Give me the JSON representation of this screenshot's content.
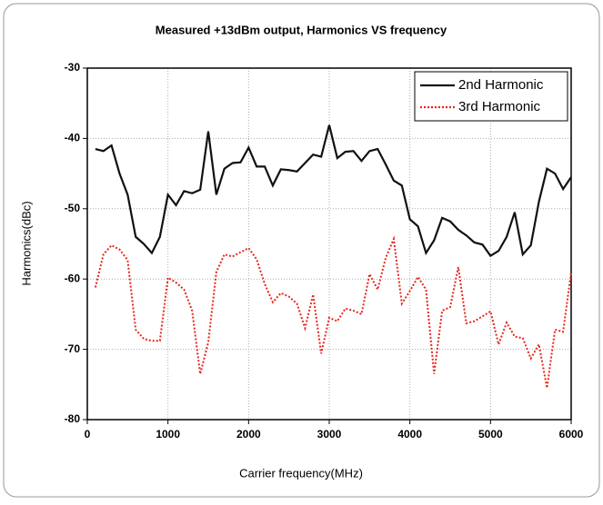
{
  "chart_data": {
    "type": "line",
    "title": "Measured +13dBm output, Harmonics VS frequency",
    "x_label": "Carrier frequency(MHz)",
    "y_label": "Harmonics(dBc)",
    "x": [
      100,
      200,
      300,
      400,
      500,
      600,
      700,
      800,
      900,
      1000,
      1100,
      1200,
      1300,
      1400,
      1500,
      1600,
      1700,
      1800,
      1900,
      2000,
      2100,
      2200,
      2300,
      2400,
      2500,
      2600,
      2700,
      2800,
      2900,
      3000,
      3100,
      3200,
      3300,
      3400,
      3500,
      3600,
      3700,
      3800,
      3900,
      4000,
      4100,
      4200,
      4300,
      4400,
      4500,
      4600,
      4700,
      4800,
      4900,
      5000,
      5100,
      5200,
      5300,
      5400,
      5500,
      5600,
      5700,
      5800,
      5900,
      6000
    ],
    "series": [
      {
        "name": "2nd Harmonic",
        "color": "#111111",
        "values": [
          -41.5,
          -41.8,
          -41,
          -45,
          -48,
          -54,
          -55,
          -56.3,
          -54,
          -48,
          -49.5,
          -47.5,
          -47.8,
          -47.3,
          -39,
          -48,
          -44.3,
          -43.5,
          -43.4,
          -41.3,
          -44,
          -44,
          -46.7,
          -44.4,
          -44.5,
          -44.7,
          -43.5,
          -42.3,
          -42.6,
          -38.1,
          -42.8,
          -41.9,
          -41.8,
          -43.2,
          -41.8,
          -41.5,
          -43.7,
          -46,
          -46.7,
          -51.5,
          -52.5,
          -56.3,
          -54.5,
          -51.3,
          -51.8,
          -53,
          -53.8,
          -54.8,
          -55.1,
          -56.7,
          -56,
          -54,
          -50.5,
          -56.5,
          -55.2,
          -49,
          -44.3,
          -45,
          -47.2,
          -45.5
        ]
      },
      {
        "name": "3rd Harmonic",
        "color": "#e8261e",
        "values": [
          -61.2,
          -56.5,
          -55.2,
          -55.8,
          -57.3,
          -67.2,
          -68.5,
          -68.8,
          -68.8,
          -59.8,
          -60.5,
          -61.5,
          -64.5,
          -73.5,
          -69,
          -59,
          -56.5,
          -56.8,
          -56.2,
          -55.6,
          -57.2,
          -60.7,
          -63.3,
          -62,
          -62.5,
          -63.5,
          -67,
          -62.2,
          -70.6,
          -65.5,
          -66,
          -64.2,
          -64.5,
          -65,
          -59.3,
          -61.5,
          -57,
          -54.3,
          -63.5,
          -61.7,
          -59.7,
          -61.5,
          -73.5,
          -64.5,
          -64,
          -58.3,
          -66.3,
          -66,
          -65.3,
          -64.6,
          -69.3,
          -66.2,
          -68.2,
          -68.4,
          -71.3,
          -69.3,
          -75.5,
          -67.2,
          -67.5,
          -59
        ]
      }
    ],
    "xlim": [
      0,
      6000
    ],
    "xticks": [
      0,
      1000,
      2000,
      3000,
      4000,
      5000,
      6000
    ],
    "ylim": [
      -80,
      -30
    ],
    "yticks": [
      -80,
      -70,
      -60,
      -50,
      -40,
      -30
    ],
    "grid": true,
    "legend": "upper right"
  }
}
